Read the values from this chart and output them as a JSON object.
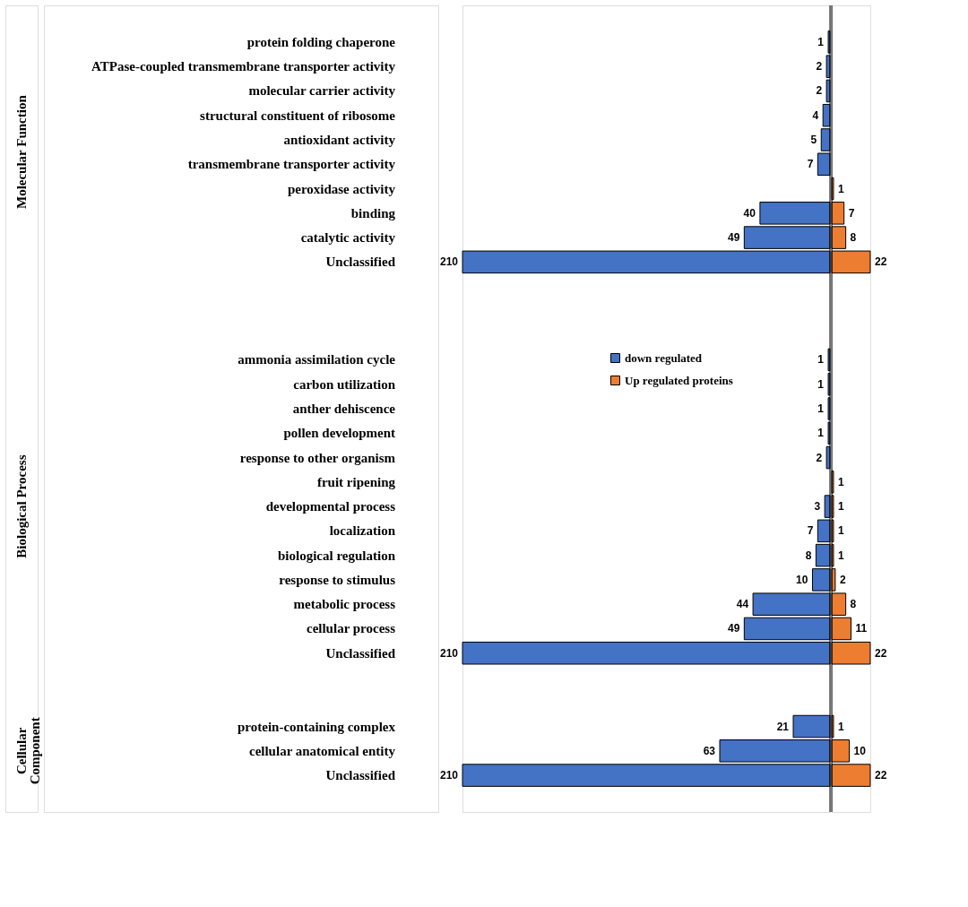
{
  "chart_data": [
    {
      "type": "bar",
      "orientation": "horizontal",
      "data_labels": true,
      "legend": "left",
      "tick_labels": "y",
      "xlim": [
        210,
        0
      ],
      "categories": [
        null,
        "protein folding chaperone",
        "ATPase-coupled transmembrane transporter activity",
        "molecular carrier activity",
        "structural constituent of ribosome",
        "antioxidant activity",
        "transmembrane transporter activity",
        "peroxidase activity",
        "binding",
        "catalytic activity",
        "Unclassified",
        null,
        null,
        null,
        "ammonia assimilation cycle",
        "carbon utilization",
        "anther dehiscence",
        "pollen development",
        "response to other organism",
        "fruit ripening",
        "developmental process",
        "localization",
        "biological regulation",
        "response to stimulus",
        "metabolic process",
        "cellular process",
        "Unclassified",
        null,
        null,
        "protein-containing complex",
        "cellular anatomical entity",
        "Unclassified",
        null
      ],
      "annotations": [
        "Molecular Function",
        "Biological Process",
        "Cellular Component"
      ],
      "series": [
        {
          "name": "down regulated",
          "color": "#4472c4",
          "values": [
            null,
            1,
            2,
            2,
            4,
            5,
            7,
            null,
            40,
            49,
            210,
            null,
            null,
            null,
            1,
            1,
            1,
            1,
            2,
            null,
            3,
            7,
            8,
            10,
            44,
            49,
            210,
            null,
            null,
            21,
            63,
            210,
            null
          ]
        }
      ]
    },
    {
      "type": "bar",
      "orientation": "horizontal",
      "data_labels": true,
      "tick_labels": false,
      "xlim": [
        0,
        22
      ],
      "categories": [
        null,
        null,
        null,
        null,
        null,
        null,
        null,
        null,
        null,
        null,
        null,
        null,
        null,
        null,
        null,
        null,
        null,
        null,
        null,
        null,
        null,
        null,
        null,
        null,
        null,
        null,
        null,
        null,
        null,
        null,
        null,
        null,
        null
      ],
      "series": [
        {
          "name": "Up regulated proteins",
          "color": "#ed7d31",
          "values": [
            null,
            null,
            null,
            null,
            null,
            null,
            null,
            1,
            7,
            8,
            22,
            null,
            null,
            null,
            null,
            null,
            null,
            null,
            null,
            1,
            1,
            1,
            1,
            2,
            8,
            11,
            22,
            null,
            null,
            1,
            10,
            22,
            null
          ]
        }
      ]
    }
  ]
}
